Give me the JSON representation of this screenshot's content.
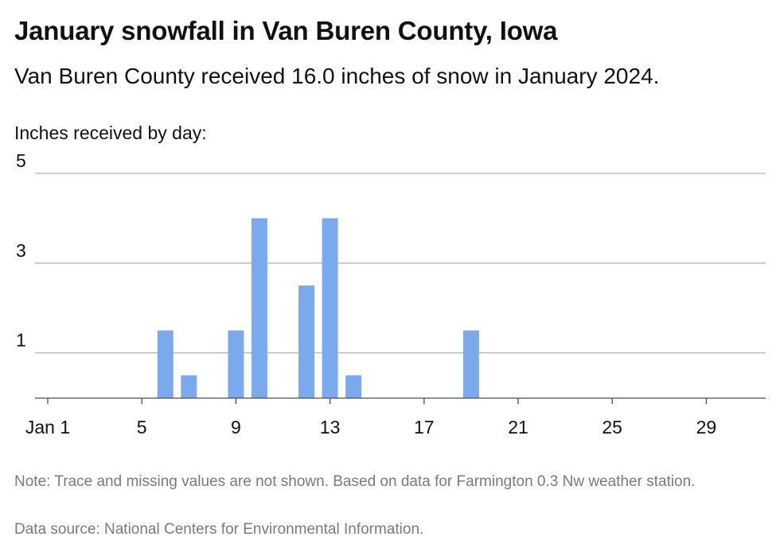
{
  "header": {
    "title": "January snowfall in Van Buren County, Iowa",
    "subtitle": "Van Buren County received 16.0 inches of snow in January 2024.",
    "axis_caption": "Inches received by day:"
  },
  "footer": {
    "note": "Note: Trace and missing values are not shown. Based on data for Farmington 0.3 Nw weather station.",
    "source": "Data source: National Centers for Environmental Information."
  },
  "chart_data": {
    "type": "bar",
    "x": [
      6,
      7,
      9,
      10,
      12,
      13,
      14,
      19
    ],
    "values": [
      1.5,
      0.5,
      1.5,
      4.0,
      2.5,
      4.0,
      0.5,
      1.5
    ],
    "xlim": [
      1,
      31
    ],
    "ylim": [
      0,
      5
    ],
    "yticks": [
      1,
      3,
      5
    ],
    "xticks": [
      1,
      5,
      9,
      13,
      17,
      21,
      25,
      29
    ],
    "xtick_labels": [
      "Jan 1",
      "5",
      "9",
      "13",
      "17",
      "21",
      "25",
      "29"
    ],
    "ylabel": "Inches received by day:",
    "grid": true,
    "bar_color": "#7aaaed",
    "grid_color": "#b3b3b3",
    "axis_color": "#4d4d4d"
  }
}
